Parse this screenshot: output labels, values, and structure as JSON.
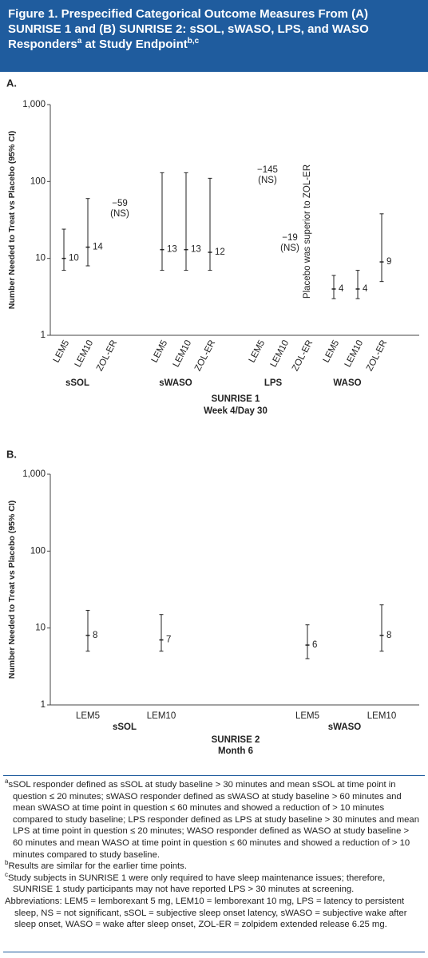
{
  "header": {
    "title": "Figure 1. Prespecified Categorical Outcome Measures From (A) SUNRISE 1 and (B) SUNRISE 2: sSOL, sWASO, LPS, and WASO Responders",
    "title_sup": "a",
    "title_end": "at Study Endpoint",
    "title_end_sup": "b,c"
  },
  "chart_data": [
    {
      "type": "errorbar",
      "panel_label": "A.",
      "y_label": "Number Needed to Treat vs Placebo (95% CI)",
      "log_scale": true,
      "ylim": [
        1,
        1000
      ],
      "yticks": [
        1,
        10,
        100,
        {
          "value": 1000,
          "label": "1,000"
        }
      ],
      "categories": [
        "LEM5",
        "LEM10",
        "ZOL-ER",
        "LEM5",
        "LEM10",
        "ZOL-ER",
        "LEM5",
        "LEM10",
        "ZOL-ER",
        "LEM5",
        "LEM10",
        "ZOL-ER"
      ],
      "groups": [
        "sSOL",
        "sWASO",
        "LPS",
        "WASO"
      ],
      "values": [
        10,
        14,
        null,
        13,
        13,
        12,
        null,
        null,
        null,
        4,
        4,
        9
      ],
      "ci_low": [
        7,
        8,
        null,
        7,
        7,
        7,
        null,
        null,
        null,
        3,
        3,
        5
      ],
      "ci_high": [
        24,
        60,
        null,
        130,
        130,
        110,
        null,
        null,
        null,
        6,
        7,
        38
      ],
      "annotations": [
        {
          "text": "−59",
          "note": "(NS)"
        },
        {
          "text": "−145",
          "note": "(NS)"
        },
        {
          "text": "−19",
          "note": "(NS)"
        },
        {
          "text": "Placebo was superior to ZOL-ER"
        }
      ],
      "x_title": [
        "SUNRISE 1",
        "Week 4/Day 30"
      ],
      "color": "#222222"
    },
    {
      "type": "errorbar",
      "panel_label": "B.",
      "y_label": "Number Needed to Treat vs Placebo (95% CI)",
      "log_scale": true,
      "ylim": [
        1,
        1000
      ],
      "yticks": [
        1,
        10,
        100,
        {
          "value": 1000,
          "label": "1,000"
        }
      ],
      "categories": [
        "LEM5",
        "LEM10",
        "LEM5",
        "LEM10"
      ],
      "groups": [
        "sSOL",
        "sWASO"
      ],
      "values": [
        8,
        7,
        6,
        8
      ],
      "ci_low": [
        5,
        5,
        4,
        5
      ],
      "ci_high": [
        17,
        15,
        11,
        20
      ],
      "x_title": [
        "SUNRISE 2",
        "Month 6"
      ],
      "color": "#222222"
    }
  ],
  "footnotes": [
    {
      "marker": "a",
      "text": "sSOL responder defined as sSOL at study baseline > 30 minutes and mean sSOL at time point in question ≤ 20 minutes; sWASO responder defined as sWASO at study baseline > 60 minutes and mean sWASO at time point in question ≤ 60 minutes and showed a reduction of > 10 minutes compared to study baseline; LPS responder defined as LPS at study baseline > 30 minutes and mean LPS at time point in question ≤ 20 minutes; WASO responder defined as WASO at study baseline > 60 minutes and mean WASO at time point in question ≤ 60 minutes and showed a reduction of > 10 minutes compared to study baseline."
    },
    {
      "marker": "b",
      "text": "Results are similar for the earlier time points."
    },
    {
      "marker": "c",
      "text": "Study subjects in SUNRISE 1 were only required to have sleep maintenance issues; therefore, SUNRISE 1 study participants may not have reported LPS > 30 minutes at screening."
    }
  ],
  "abbreviations": "Abbreviations: LEM5 = lemborexant 5 mg, LEM10 = lemborexant 10 mg, LPS = latency to persistent sleep, NS = not significant, sSOL = subjective sleep onset latency, sWASO = subjective wake after sleep onset, WASO = wake after sleep onset, ZOL-ER = zolpidem extended release 6.25 mg."
}
